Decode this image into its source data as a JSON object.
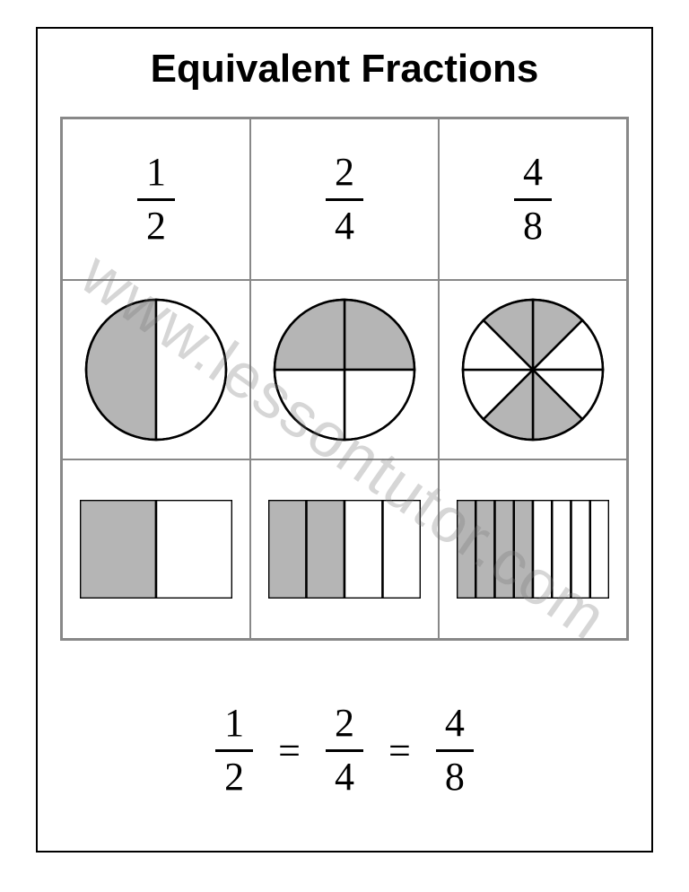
{
  "title": "Equivalent Fractions",
  "watermark": "www.lessontutor.com",
  "colors": {
    "stroke": "#000000",
    "fill_shaded": "#b5b5b5",
    "fill_empty": "#ffffff",
    "grid_border": "#888888"
  },
  "fractions": [
    {
      "numerator": "1",
      "denominator": "2"
    },
    {
      "numerator": "2",
      "denominator": "4"
    },
    {
      "numerator": "4",
      "denominator": "8"
    }
  ],
  "circles": [
    {
      "slices": 2,
      "shaded": [
        0
      ],
      "shaded_count": 1
    },
    {
      "slices": 4,
      "shaded": [
        0,
        3
      ],
      "shaded_count": 2
    },
    {
      "slices": 8,
      "shaded": [
        0,
        3,
        4,
        7
      ],
      "shaded_count": 4
    }
  ],
  "rects": [
    {
      "parts": 2,
      "shaded": [
        0
      ]
    },
    {
      "parts": 4,
      "shaded": [
        0,
        1
      ]
    },
    {
      "parts": 8,
      "shaded": [
        0,
        1,
        2,
        3
      ]
    }
  ],
  "equation": {
    "terms": [
      {
        "numerator": "1",
        "denominator": "2"
      },
      {
        "numerator": "2",
        "denominator": "4"
      },
      {
        "numerator": "4",
        "denominator": "8"
      }
    ],
    "separator": "="
  },
  "circle_radius": 78,
  "rect_size": {
    "width": 170,
    "height": 110
  }
}
